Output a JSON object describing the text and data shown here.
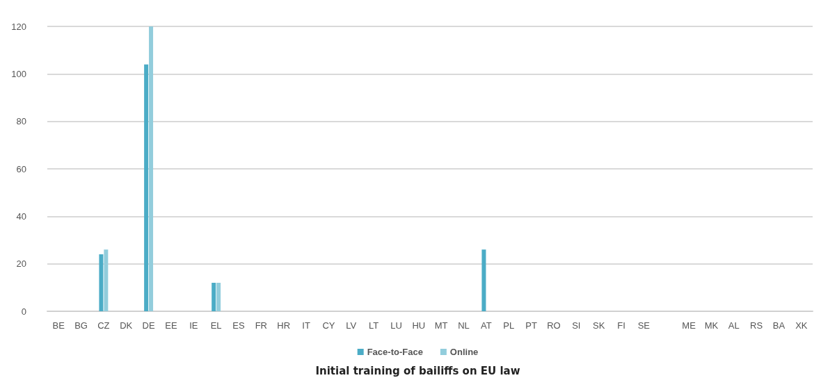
{
  "chart_data": {
    "type": "bar",
    "title": "Initial training of bailiffs on EU law",
    "categories": [
      "BE",
      "BG",
      "CZ",
      "DK",
      "DE",
      "EE",
      "IE",
      "EL",
      "ES",
      "FR",
      "HR",
      "IT",
      "CY",
      "LV",
      "LT",
      "LU",
      "HU",
      "MT",
      "NL",
      "AT",
      "PL",
      "PT",
      "RO",
      "SI",
      "SK",
      "FI",
      "SE",
      null,
      "ME",
      "MK",
      "AL",
      "RS",
      "BA",
      "XK"
    ],
    "series": [
      {
        "name": "Face-to-Face",
        "color": "#4bacc6",
        "values": [
          0,
          0,
          24,
          0,
          104,
          0,
          0,
          12,
          0,
          0,
          0,
          0,
          0,
          0,
          0,
          0,
          0,
          0,
          0,
          26,
          0,
          0,
          0,
          0,
          0,
          0,
          0,
          null,
          0,
          0,
          0,
          0,
          0,
          0
        ]
      },
      {
        "name": "Online",
        "color": "#92cddc",
        "values": [
          0,
          0,
          26,
          0,
          120,
          0,
          0,
          12,
          0,
          0,
          0,
          0,
          0,
          0,
          0,
          0,
          0,
          0,
          0,
          0,
          0,
          0,
          0,
          0,
          0,
          0,
          0,
          null,
          0,
          0,
          0,
          0,
          0,
          0
        ]
      }
    ],
    "ylim": [
      0,
      120
    ],
    "yticks": [
      0,
      20,
      40,
      60,
      80,
      100,
      120
    ],
    "grid": "y",
    "legend": "bottom"
  }
}
